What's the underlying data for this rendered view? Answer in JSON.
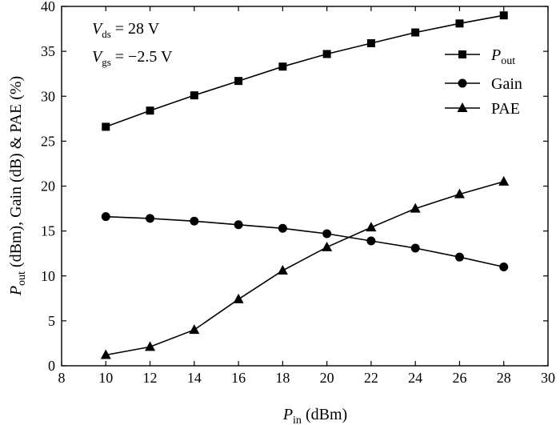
{
  "conditions": {
    "vds": {
      "sym": "V",
      "sub": "ds",
      "rest": " = 28 V"
    },
    "vgs": {
      "sym": "V",
      "sub": "gs",
      "rest": " = −2.5 V"
    }
  },
  "x_axis": {
    "sym": "P",
    "sub": "in",
    "rest": " (dBm)"
  },
  "y_axis": {
    "sym": "P",
    "sub": "out",
    "rest": " (dBm), Gain (dB) & PAE (%)"
  },
  "legend": [
    {
      "sym": "P",
      "sub": "out",
      "marker": "square"
    },
    {
      "text": "Gain",
      "marker": "circle"
    },
    {
      "text": "PAE",
      "marker": "triangle"
    }
  ],
  "chart_data": {
    "type": "line",
    "x": [
      10,
      12,
      14,
      16,
      18,
      20,
      22,
      24,
      26,
      28
    ],
    "xlim": [
      8,
      30
    ],
    "ylim": [
      0,
      40
    ],
    "xticks": [
      8,
      10,
      12,
      14,
      16,
      18,
      20,
      22,
      24,
      26,
      28,
      30
    ],
    "yticks": [
      0,
      5,
      10,
      15,
      20,
      25,
      30,
      35,
      40
    ],
    "grid": false,
    "legend_position": "right",
    "xlabel": "Pin (dBm)",
    "ylabel": "Pout (dBm), Gain (dB) & PAE (%)",
    "series": [
      {
        "name": "Pout",
        "marker": "square",
        "values": [
          26.6,
          28.4,
          30.1,
          31.7,
          33.3,
          34.7,
          35.9,
          37.1,
          38.1,
          39.0
        ]
      },
      {
        "name": "Gain",
        "marker": "circle",
        "values": [
          16.6,
          16.4,
          16.1,
          15.7,
          15.3,
          14.7,
          13.9,
          13.1,
          12.1,
          11.0
        ]
      },
      {
        "name": "PAE",
        "marker": "triangle",
        "values": [
          1.2,
          2.1,
          4.0,
          7.4,
          10.6,
          13.2,
          15.4,
          17.5,
          19.1,
          20.5
        ]
      }
    ]
  }
}
